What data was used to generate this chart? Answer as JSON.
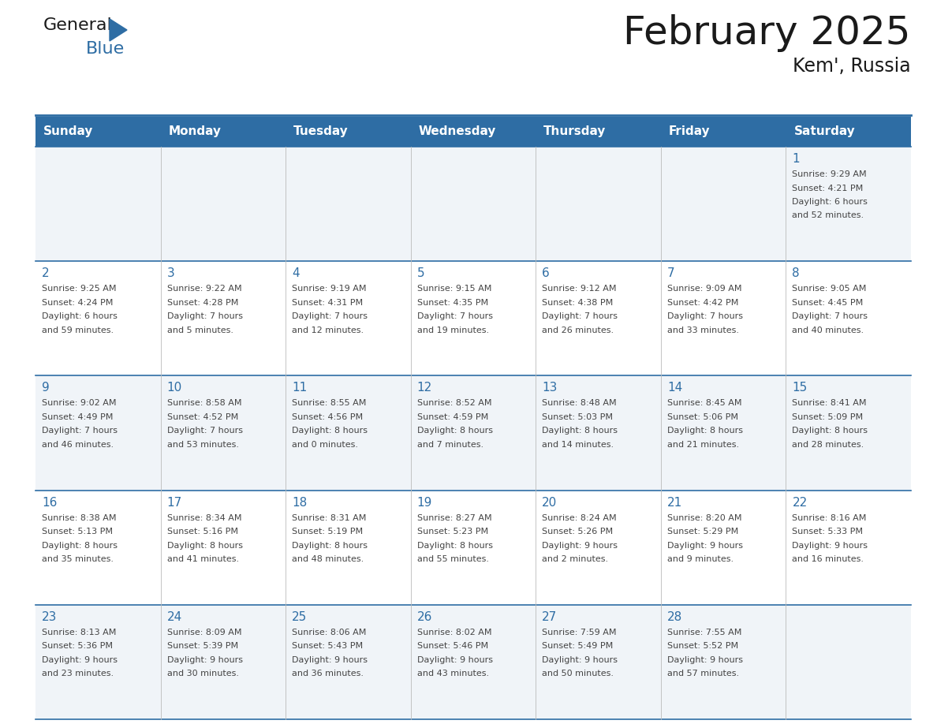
{
  "title": "February 2025",
  "subtitle": "Kem', Russia",
  "days_of_week": [
    "Sunday",
    "Monday",
    "Tuesday",
    "Wednesday",
    "Thursday",
    "Friday",
    "Saturday"
  ],
  "header_bg": "#2E6DA4",
  "header_text_color": "#FFFFFF",
  "odd_row_bg": "#F0F4F8",
  "even_row_bg": "#FFFFFF",
  "border_color": "#2E6DA4",
  "day_number_color": "#2E6DA4",
  "text_color": "#444444",
  "title_color": "#1a1a1a",
  "calendar_data": [
    [
      null,
      null,
      null,
      null,
      null,
      null,
      {
        "day": 1,
        "sunrise": "9:29 AM",
        "sunset": "4:21 PM",
        "daylight": "6 hours and 52 minutes."
      }
    ],
    [
      {
        "day": 2,
        "sunrise": "9:25 AM",
        "sunset": "4:24 PM",
        "daylight": "6 hours and 59 minutes."
      },
      {
        "day": 3,
        "sunrise": "9:22 AM",
        "sunset": "4:28 PM",
        "daylight": "7 hours and 5 minutes."
      },
      {
        "day": 4,
        "sunrise": "9:19 AM",
        "sunset": "4:31 PM",
        "daylight": "7 hours and 12 minutes."
      },
      {
        "day": 5,
        "sunrise": "9:15 AM",
        "sunset": "4:35 PM",
        "daylight": "7 hours and 19 minutes."
      },
      {
        "day": 6,
        "sunrise": "9:12 AM",
        "sunset": "4:38 PM",
        "daylight": "7 hours and 26 minutes."
      },
      {
        "day": 7,
        "sunrise": "9:09 AM",
        "sunset": "4:42 PM",
        "daylight": "7 hours and 33 minutes."
      },
      {
        "day": 8,
        "sunrise": "9:05 AM",
        "sunset": "4:45 PM",
        "daylight": "7 hours and 40 minutes."
      }
    ],
    [
      {
        "day": 9,
        "sunrise": "9:02 AM",
        "sunset": "4:49 PM",
        "daylight": "7 hours and 46 minutes."
      },
      {
        "day": 10,
        "sunrise": "8:58 AM",
        "sunset": "4:52 PM",
        "daylight": "7 hours and 53 minutes."
      },
      {
        "day": 11,
        "sunrise": "8:55 AM",
        "sunset": "4:56 PM",
        "daylight": "8 hours and 0 minutes."
      },
      {
        "day": 12,
        "sunrise": "8:52 AM",
        "sunset": "4:59 PM",
        "daylight": "8 hours and 7 minutes."
      },
      {
        "day": 13,
        "sunrise": "8:48 AM",
        "sunset": "5:03 PM",
        "daylight": "8 hours and 14 minutes."
      },
      {
        "day": 14,
        "sunrise": "8:45 AM",
        "sunset": "5:06 PM",
        "daylight": "8 hours and 21 minutes."
      },
      {
        "day": 15,
        "sunrise": "8:41 AM",
        "sunset": "5:09 PM",
        "daylight": "8 hours and 28 minutes."
      }
    ],
    [
      {
        "day": 16,
        "sunrise": "8:38 AM",
        "sunset": "5:13 PM",
        "daylight": "8 hours and 35 minutes."
      },
      {
        "day": 17,
        "sunrise": "8:34 AM",
        "sunset": "5:16 PM",
        "daylight": "8 hours and 41 minutes."
      },
      {
        "day": 18,
        "sunrise": "8:31 AM",
        "sunset": "5:19 PM",
        "daylight": "8 hours and 48 minutes."
      },
      {
        "day": 19,
        "sunrise": "8:27 AM",
        "sunset": "5:23 PM",
        "daylight": "8 hours and 55 minutes."
      },
      {
        "day": 20,
        "sunrise": "8:24 AM",
        "sunset": "5:26 PM",
        "daylight": "9 hours and 2 minutes."
      },
      {
        "day": 21,
        "sunrise": "8:20 AM",
        "sunset": "5:29 PM",
        "daylight": "9 hours and 9 minutes."
      },
      {
        "day": 22,
        "sunrise": "8:16 AM",
        "sunset": "5:33 PM",
        "daylight": "9 hours and 16 minutes."
      }
    ],
    [
      {
        "day": 23,
        "sunrise": "8:13 AM",
        "sunset": "5:36 PM",
        "daylight": "9 hours and 23 minutes."
      },
      {
        "day": 24,
        "sunrise": "8:09 AM",
        "sunset": "5:39 PM",
        "daylight": "9 hours and 30 minutes."
      },
      {
        "day": 25,
        "sunrise": "8:06 AM",
        "sunset": "5:43 PM",
        "daylight": "9 hours and 36 minutes."
      },
      {
        "day": 26,
        "sunrise": "8:02 AM",
        "sunset": "5:46 PM",
        "daylight": "9 hours and 43 minutes."
      },
      {
        "day": 27,
        "sunrise": "7:59 AM",
        "sunset": "5:49 PM",
        "daylight": "9 hours and 50 minutes."
      },
      {
        "day": 28,
        "sunrise": "7:55 AM",
        "sunset": "5:52 PM",
        "daylight": "9 hours and 57 minutes."
      },
      null
    ]
  ]
}
